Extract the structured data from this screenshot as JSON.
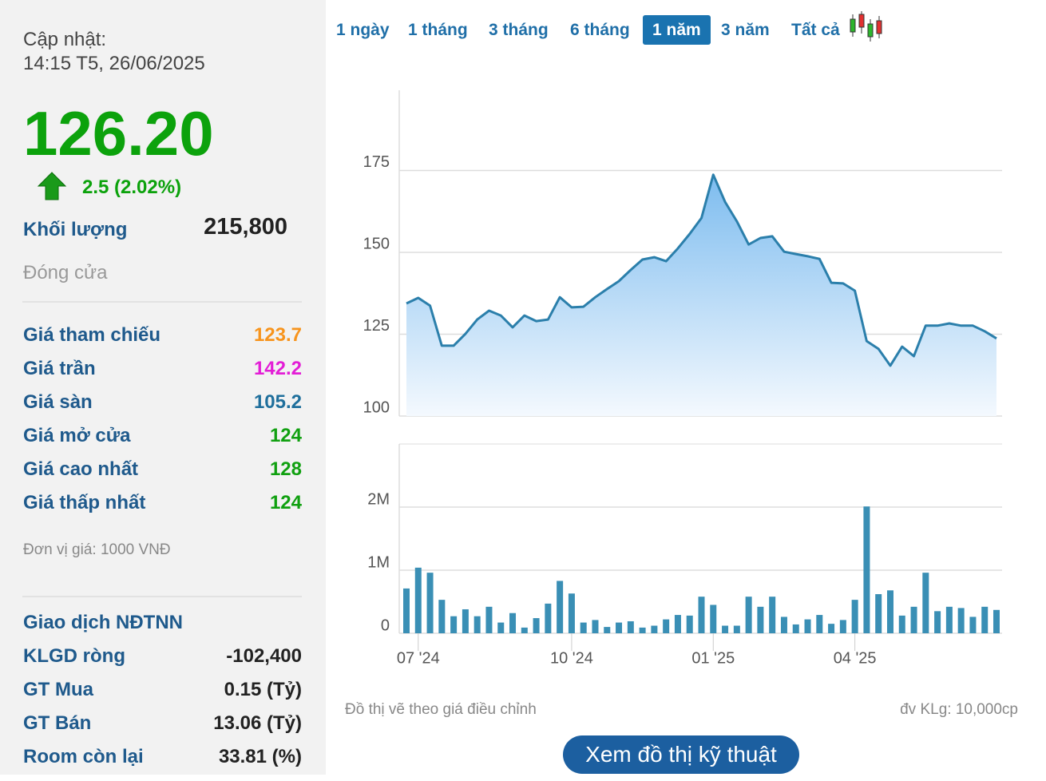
{
  "sidebar": {
    "update_label": "Cập nhật:",
    "update_time": "14:15 T5, 26/06/2025",
    "price": "126.20",
    "change": "2.5 (2.02%)",
    "volume_label": "Khối lượng",
    "volume": "215,800",
    "status": "Đóng cửa",
    "prices": [
      {
        "label": "Giá tham chiếu",
        "value": "123.7",
        "color": "#f7941d"
      },
      {
        "label": "Giá trần",
        "value": "142.2",
        "color": "#e31ed6"
      },
      {
        "label": "Giá sàn",
        "value": "105.2",
        "color": "#1f6f9c"
      },
      {
        "label": "Giá mở cửa",
        "value": "124",
        "color": "#10a010"
      },
      {
        "label": "Giá cao nhất",
        "value": "128",
        "color": "#10a010"
      },
      {
        "label": "Giá thấp nhất",
        "value": "124",
        "color": "#10a010"
      }
    ],
    "unit_note": "Đơn vị giá: 1000 VNĐ",
    "foreign_title": "Giao dịch NĐTNN",
    "foreign": [
      {
        "label": "KLGD ròng",
        "value": "-102,400"
      },
      {
        "label": "GT Mua",
        "value": "0.15 (Tỷ)"
      },
      {
        "label": "GT Bán",
        "value": "13.06 (Tỷ)"
      },
      {
        "label": "Room còn lại",
        "value": "33.81 (%)"
      }
    ]
  },
  "tabs": {
    "items": [
      "1 ngày",
      "1 tháng",
      "3 tháng",
      "6 tháng",
      "1 năm",
      "3 năm",
      "Tất cả"
    ],
    "active": 4
  },
  "chart_data": [
    {
      "type": "line",
      "categories": [
        null,
        "07 '24",
        null,
        null,
        null,
        null,
        null,
        null,
        null,
        null,
        null,
        null,
        null,
        null,
        "10 '24",
        null,
        null,
        null,
        null,
        null,
        null,
        null,
        null,
        null,
        null,
        null,
        "01 '25",
        null,
        null,
        null,
        null,
        null,
        null,
        null,
        null,
        null,
        null,
        null,
        "04 '25",
        null,
        null,
        null,
        null,
        null,
        null,
        null,
        null,
        null,
        null,
        null,
        null
      ],
      "values": [
        134.4,
        136.1,
        133.7,
        121.5,
        121.5,
        125.1,
        129.5,
        132.2,
        130.7,
        127.1,
        130.7,
        129,
        129.5,
        136.3,
        133.2,
        133.4,
        136.3,
        138.8,
        141.2,
        144.6,
        147.8,
        148.5,
        147.3,
        151.2,
        155.6,
        160.5,
        173.7,
        165.4,
        159.5,
        152.4,
        154.4,
        154.9,
        150.2,
        149.5,
        148.8,
        148,
        140.7,
        140.5,
        138.3,
        122.9,
        120.5,
        115.4,
        121.2,
        118.3,
        127.6,
        127.6,
        128.3,
        127.6,
        127.6,
        125.9,
        123.7
      ],
      "color": "#2b7fab",
      "ylim": [
        100,
        200
      ],
      "yticks": [
        100,
        125,
        150,
        175
      ],
      "grid": true
    },
    {
      "type": "bar",
      "categories": [
        null,
        "07 '24",
        null,
        null,
        null,
        null,
        null,
        null,
        null,
        null,
        null,
        null,
        null,
        null,
        "10 '24",
        null,
        null,
        null,
        null,
        null,
        null,
        null,
        null,
        null,
        null,
        null,
        "01 '25",
        null,
        null,
        null,
        null,
        null,
        null,
        null,
        null,
        null,
        null,
        null,
        "04 '25",
        null,
        null,
        null,
        null,
        null,
        null,
        null,
        null,
        null,
        null,
        null,
        null
      ],
      "values": [
        710000,
        1040000,
        960000,
        530000,
        270000,
        380000,
        270000,
        420000,
        170000,
        320000,
        90000,
        240000,
        470000,
        830000,
        630000,
        170000,
        210000,
        100000,
        170000,
        190000,
        90000,
        120000,
        220000,
        290000,
        280000,
        580000,
        450000,
        120000,
        120000,
        580000,
        420000,
        580000,
        260000,
        140000,
        220000,
        290000,
        150000,
        210000,
        530000,
        2010000,
        620000,
        680000,
        280000,
        420000,
        960000,
        350000,
        420000,
        400000,
        260000,
        420000,
        370000
      ],
      "color": "#3a8fb5",
      "ylim": [
        0,
        3000000
      ],
      "yticks": [
        0,
        {
          "value": 1000000,
          "label": "1M"
        },
        {
          "value": 2000000,
          "label": "2M"
        }
      ],
      "grid": true
    }
  ],
  "footer": {
    "note": "Đồ thị vẽ theo giá điều chỉnh",
    "unit": "đv KLg: 10,000cp",
    "button": "Xem đồ thị kỹ thuật"
  }
}
